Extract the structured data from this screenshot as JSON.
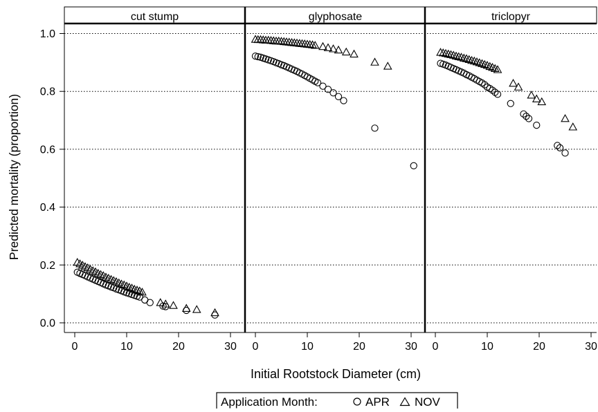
{
  "chart_data": {
    "type": "scatter",
    "panels": [
      "cut stump",
      "glyphosate",
      "triclopyr"
    ],
    "xlabel": "Initial Rootstock Diameter (cm)",
    "ylabel": "Predicted mortality (proportion)",
    "xlim": [
      -1,
      33
    ],
    "ylim": [
      -0.03,
      1.03
    ],
    "x_ticks": [
      0,
      10,
      20,
      30
    ],
    "y_ticks": [
      0.0,
      0.2,
      0.4,
      0.6,
      0.8,
      1.0
    ],
    "x_tick_labels": [
      "0",
      "10",
      "20",
      "30"
    ],
    "y_tick_labels": [
      "0.0",
      "0.2",
      "0.4",
      "0.6",
      "0.8",
      "1.0"
    ],
    "grid": "horizontal dotted",
    "legend": {
      "title": "Application Month:",
      "placement": "bottom",
      "entries": [
        {
          "label": "APR",
          "marker": "circle"
        },
        {
          "label": "NOV",
          "marker": "triangle"
        }
      ]
    },
    "series": [
      {
        "panel": "cut stump",
        "name": "APR",
        "marker": "circle",
        "x": [
          0.5,
          1,
          1.5,
          2,
          2.5,
          3,
          3.5,
          4,
          4.5,
          5,
          5.5,
          6,
          6.5,
          7,
          7.5,
          8,
          8.5,
          9,
          9.5,
          10,
          10.5,
          11,
          11.5,
          12,
          12.5,
          13.5,
          14.5,
          17,
          17.5,
          21.5,
          27
        ],
        "y": [
          0.175,
          0.171,
          0.167,
          0.163,
          0.159,
          0.155,
          0.151,
          0.147,
          0.143,
          0.139,
          0.135,
          0.131,
          0.128,
          0.124,
          0.121,
          0.117,
          0.114,
          0.111,
          0.107,
          0.104,
          0.101,
          0.098,
          0.095,
          0.092,
          0.089,
          0.079,
          0.07,
          0.058,
          0.056,
          0.043,
          0.027
        ]
      },
      {
        "panel": "cut stump",
        "name": "NOV",
        "marker": "triangle",
        "x": [
          0.5,
          1,
          1.5,
          2,
          2.5,
          3,
          3.5,
          4,
          4.5,
          5,
          5.5,
          6,
          6.5,
          7,
          7.5,
          8,
          8.5,
          9,
          9.5,
          10,
          10.5,
          11,
          11.5,
          12,
          12.5,
          13,
          16.5,
          17.5,
          19,
          21.5,
          23.5,
          27
        ],
        "y": [
          0.209,
          0.204,
          0.199,
          0.194,
          0.19,
          0.185,
          0.18,
          0.176,
          0.171,
          0.167,
          0.163,
          0.158,
          0.154,
          0.15,
          0.146,
          0.142,
          0.138,
          0.134,
          0.131,
          0.127,
          0.123,
          0.12,
          0.116,
          0.113,
          0.11,
          0.106,
          0.07,
          0.065,
          0.06,
          0.05,
          0.046,
          0.035
        ]
      },
      {
        "panel": "glyphosate",
        "name": "APR",
        "marker": "circle",
        "x": [
          0,
          0.5,
          1,
          1.5,
          2,
          2.5,
          3,
          3.5,
          4,
          4.5,
          5,
          5.5,
          6,
          6.5,
          7,
          7.5,
          8,
          8.5,
          9,
          9.5,
          10,
          10.5,
          11,
          11.5,
          12,
          13,
          14,
          15,
          16,
          17,
          23,
          30.5
        ],
        "y": [
          0.922,
          0.92,
          0.918,
          0.915,
          0.912,
          0.909,
          0.906,
          0.903,
          0.899,
          0.896,
          0.892,
          0.889,
          0.885,
          0.881,
          0.877,
          0.873,
          0.869,
          0.864,
          0.86,
          0.855,
          0.85,
          0.845,
          0.84,
          0.835,
          0.83,
          0.818,
          0.807,
          0.795,
          0.782,
          0.768,
          0.673,
          0.543
        ]
      },
      {
        "panel": "glyphosate",
        "name": "NOV",
        "marker": "triangle",
        "x": [
          0,
          0.5,
          1,
          1.5,
          2,
          2.5,
          3,
          3.5,
          4,
          4.5,
          5,
          5.5,
          6,
          6.5,
          7,
          7.5,
          8,
          8.5,
          9,
          9.5,
          10,
          10.5,
          11,
          11.5,
          13,
          14,
          15,
          16,
          17.5,
          19,
          23,
          25.5
        ],
        "y": [
          0.98,
          0.979,
          0.979,
          0.978,
          0.977,
          0.977,
          0.976,
          0.975,
          0.974,
          0.974,
          0.973,
          0.972,
          0.971,
          0.97,
          0.969,
          0.968,
          0.967,
          0.966,
          0.965,
          0.964,
          0.963,
          0.962,
          0.961,
          0.959,
          0.955,
          0.951,
          0.947,
          0.943,
          0.936,
          0.929,
          0.901,
          0.887
        ]
      },
      {
        "panel": "triclopyr",
        "name": "APR",
        "marker": "circle",
        "x": [
          1,
          1.5,
          2,
          2.5,
          3,
          3.5,
          4,
          4.5,
          5,
          5.5,
          6,
          6.5,
          7,
          7.5,
          8,
          8.5,
          9,
          9.5,
          10,
          10.5,
          11,
          11.5,
          12,
          14.5,
          17,
          17.5,
          18,
          19.5,
          23.5,
          24,
          25
        ],
        "y": [
          0.897,
          0.894,
          0.891,
          0.887,
          0.883,
          0.879,
          0.875,
          0.871,
          0.867,
          0.863,
          0.858,
          0.854,
          0.849,
          0.844,
          0.839,
          0.834,
          0.829,
          0.823,
          0.815,
          0.81,
          0.804,
          0.797,
          0.79,
          0.758,
          0.722,
          0.714,
          0.706,
          0.683,
          0.613,
          0.605,
          0.587
        ]
      },
      {
        "panel": "triclopyr",
        "name": "NOV",
        "marker": "triangle",
        "x": [
          1,
          1.5,
          2,
          2.5,
          3,
          3.5,
          4,
          4.5,
          5,
          5.5,
          6,
          6.5,
          7,
          7.5,
          8,
          8.5,
          9,
          9.5,
          10,
          10.5,
          11,
          11.5,
          12,
          15,
          16,
          18.5,
          19.5,
          20.5,
          25,
          26.5
        ],
        "y": [
          0.935,
          0.933,
          0.931,
          0.929,
          0.927,
          0.925,
          0.922,
          0.92,
          0.918,
          0.915,
          0.913,
          0.91,
          0.907,
          0.905,
          0.902,
          0.899,
          0.896,
          0.893,
          0.89,
          0.886,
          0.883,
          0.879,
          0.875,
          0.828,
          0.815,
          0.787,
          0.774,
          0.764,
          0.706,
          0.677
        ]
      }
    ]
  }
}
